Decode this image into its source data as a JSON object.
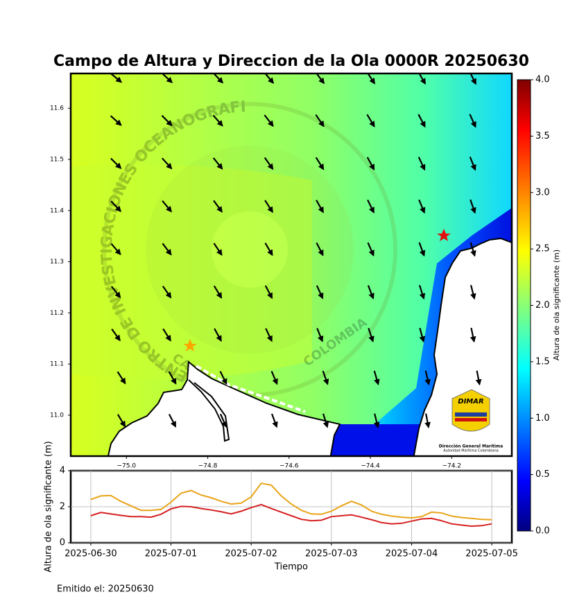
{
  "chart_data": [
    {
      "type": "map",
      "title": "Campo de Altura y Direccion de la Ola 0000R 20250630",
      "xlim": [
        -75.137,
        -74.052
      ],
      "ylim": [
        10.92,
        11.668
      ],
      "xticks": [
        {
          "value": -75.0,
          "label": "−75.0"
        },
        {
          "value": -74.8,
          "label": "−74.8"
        },
        {
          "value": -74.6,
          "label": "−74.6"
        },
        {
          "value": -74.4,
          "label": "−74.4"
        },
        {
          "value": -74.2,
          "label": "−74.2"
        }
      ],
      "yticks": [
        {
          "value": 11.0,
          "label": "11.0"
        },
        11.1,
        11.2,
        11.3,
        11.4,
        11.5,
        11.6
      ],
      "colorbar": {
        "label": "Altura de ola significante (m)",
        "lim": [
          0,
          4
        ],
        "ticks": [
          {
            "value": 0,
            "label": "0.0"
          },
          0.5,
          {
            "value": 1,
            "label": "1.0"
          },
          1.5,
          {
            "value": 2,
            "label": "2.0"
          },
          2.5,
          {
            "value": 3,
            "label": "3.0"
          },
          3.5,
          {
            "value": 4,
            "label": "4.0"
          }
        ]
      },
      "watermark": [
        "CENTRO DE INVESTIGACIONES OCEANOGRAFICAS E HIDROGRAFICAS",
        "CARTAGENA",
        "COLOMBIA"
      ],
      "logo": [
        "DIMAR",
        "Dirección General Marítima",
        "Autoridad Marítima Colombiana"
      ]
    },
    {
      "type": "line",
      "x_label": "Tiempo",
      "y_label": "Altura de ola significante (m)",
      "x": [
        0,
        0.125,
        0.25,
        0.375,
        0.5,
        0.625,
        0.75,
        0.875,
        1,
        1.125,
        1.25,
        1.375,
        1.5,
        1.625,
        1.75,
        1.875,
        2,
        2.125,
        2.25,
        2.375,
        2.5,
        2.625,
        2.75,
        2.875,
        3,
        3.125,
        3.25,
        3.375,
        3.5,
        3.625,
        3.75,
        3.875,
        4,
        4.125,
        4.25,
        4.375,
        4.5,
        4.625,
        4.75,
        4.875,
        5
      ],
      "xlim": [
        -0.25,
        5.25
      ],
      "xticks": [
        {
          "value": 0,
          "label": "2025-06-30"
        },
        {
          "value": 1,
          "label": "2025-07-01"
        },
        {
          "value": 2,
          "label": "2025-07-02"
        },
        {
          "value": 3,
          "label": "2025-07-03"
        },
        {
          "value": 4,
          "label": "2025-07-04"
        },
        {
          "value": 5,
          "label": "2025-07-05"
        }
      ],
      "ylim": [
        0,
        4
      ],
      "yticks": [
        0,
        2,
        4
      ],
      "grid": true,
      "series": [
        {
          "color": "#e8a317",
          "values": [
            2.4,
            2.6,
            2.62,
            2.3,
            2.05,
            1.8,
            1.8,
            1.85,
            2.25,
            2.75,
            2.9,
            2.65,
            2.5,
            2.3,
            2.15,
            2.2,
            2.55,
            3.3,
            3.2,
            2.6,
            2.15,
            1.8,
            1.6,
            1.58,
            1.75,
            2.05,
            2.3,
            2.1,
            1.75,
            1.58,
            1.48,
            1.42,
            1.38,
            1.45,
            1.7,
            1.65,
            1.48,
            1.4,
            1.35,
            1.3,
            1.28
          ]
        },
        {
          "color": "#d62020",
          "values": [
            1.5,
            1.68,
            1.6,
            1.52,
            1.45,
            1.45,
            1.42,
            1.58,
            1.88,
            2.02,
            2.0,
            1.9,
            1.82,
            1.72,
            1.6,
            1.75,
            1.95,
            2.12,
            1.9,
            1.7,
            1.5,
            1.3,
            1.22,
            1.25,
            1.45,
            1.5,
            1.55,
            1.42,
            1.28,
            1.12,
            1.05,
            1.08,
            1.2,
            1.32,
            1.35,
            1.22,
            1.05,
            0.98,
            0.92,
            0.95,
            1.05
          ]
        }
      ]
    },
    {
      "type": "note",
      "text": "Emitido el: 20250630"
    }
  ]
}
